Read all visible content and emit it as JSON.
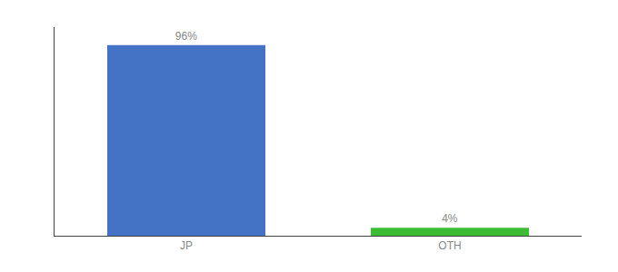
{
  "chart_data": {
    "type": "bar",
    "categories": [
      "JP",
      "OTH"
    ],
    "values": [
      96,
      4
    ],
    "value_labels": [
      "96%",
      "4%"
    ],
    "colors": [
      "#4472c4",
      "#3dbb35"
    ],
    "ylim": [
      0,
      105
    ],
    "yticks": [],
    "grid": false,
    "data_labels": true,
    "tick_labels": "x"
  }
}
